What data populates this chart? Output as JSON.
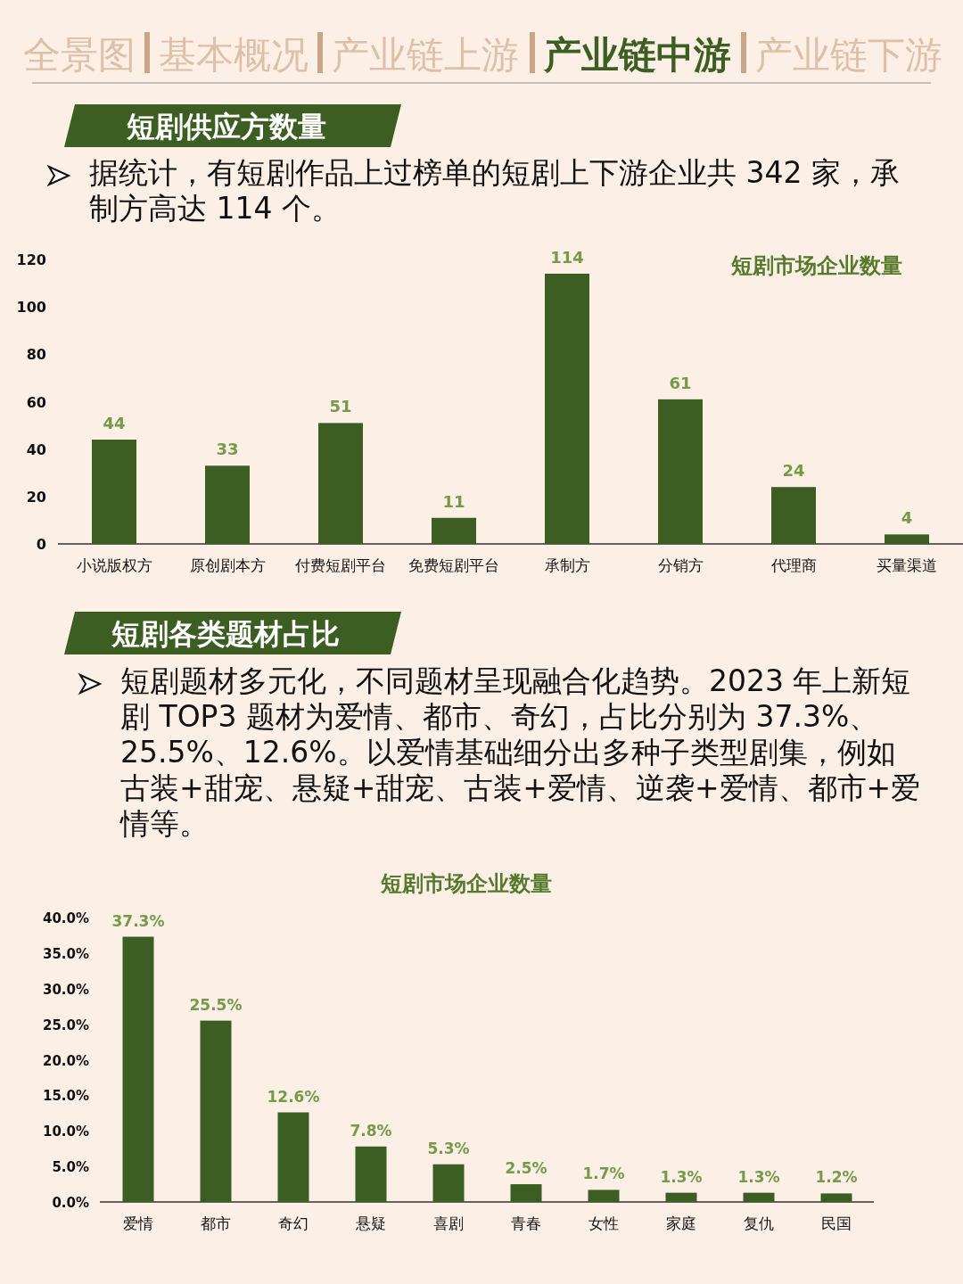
{
  "chart_data": [
    {
      "type": "bar",
      "title": "短剧市场企业数量",
      "categories": [
        "小说版权方",
        "原创剧本方",
        "付费短剧平台",
        "免费短剧平台",
        "承制方",
        "分销方",
        "代理商",
        "买量渠道"
      ],
      "values": [
        44,
        33,
        51,
        11,
        114,
        61,
        24,
        4
      ],
      "color": "#3d5e22",
      "data_labels": true,
      "ylim": [
        0,
        120
      ],
      "yticks": [
        0,
        20,
        40,
        60,
        80,
        100,
        120
      ],
      "annotations": [
        "全景图",
        "基本概况",
        "产业链上游",
        "产业链中游",
        "产业链下游",
        "短剧供应方数量",
        "据统计，有短剧作品上过榜单的短剧上下游企业共 342 家，承制方高达 114 个。"
      ]
    },
    {
      "type": "bar",
      "title": "短剧市场企业数量",
      "categories": [
        "爱情",
        "都市",
        "奇幻",
        "悬疑",
        "喜剧",
        "青春",
        "女性",
        "家庭",
        "复仇",
        "民国"
      ],
      "values": [
        37.3,
        25.5,
        12.6,
        7.8,
        5.3,
        2.5,
        1.7,
        1.3,
        1.3,
        1.2
      ],
      "color": "#3d5e22",
      "value_labels": [
        "37.3%",
        "25.5%",
        "12.6%",
        "7.8%",
        "5.3%",
        "2.5%",
        "1.7%",
        "1.3%",
        "1.3%",
        "1.2%"
      ],
      "ylim": [
        0,
        40
      ],
      "yticks": [
        {
          "value": 0,
          "label": "0.0%"
        },
        {
          "value": 5,
          "label": "5.0%"
        },
        {
          "value": 10,
          "label": "10.0%"
        },
        {
          "value": 15,
          "label": "15.0%"
        },
        {
          "value": 20,
          "label": "20.0%"
        },
        {
          "value": 25,
          "label": "25.0%"
        },
        {
          "value": 30,
          "label": "30.0%"
        },
        {
          "value": 35,
          "label": "35.0%"
        },
        {
          "value": 40,
          "label": "40.0%"
        }
      ],
      "annotations": [
        "短剧各类题材占比",
        "短剧题材多元化，不同题材呈现融合化趋势。2023 年上新短剧 TOP3 题材为爱情、都市、奇幻，占比分别为 37.3%、25.5%、12.6%。以爱情基础细分出多种子类型剧集，例如古装+甜宠、悬疑+甜宠、古装+爱情、逆袭+爱情、都市+爱情等。"
      ]
    }
  ]
}
